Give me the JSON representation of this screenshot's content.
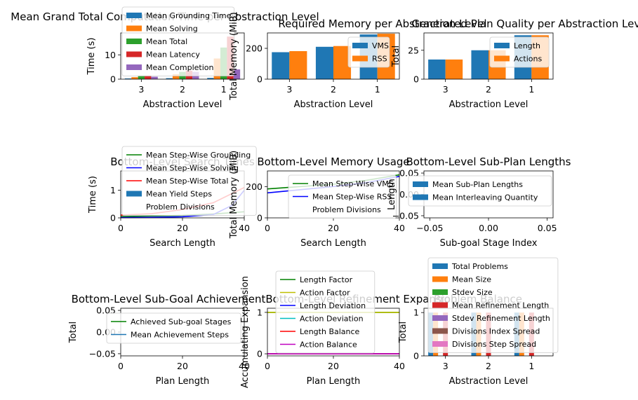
{
  "chart_data": [
    {
      "id": "p1",
      "type": "bar",
      "title": "Mean Grand Total Computation Time per Abstraction Level",
      "xlabel": "Abstraction Level",
      "ylabel": "Time (s)",
      "categories": [
        "3",
        "2",
        "1"
      ],
      "ylim": [
        0,
        19
      ],
      "yticks": [
        0,
        10
      ],
      "legend_placement": "upper-left",
      "series": [
        {
          "name": "Mean Grounding Time",
          "color": "#1f77b4",
          "values": [
            0.3,
            0.4,
            0.5
          ]
        },
        {
          "name": "Mean Solving",
          "color": "#ff7f0e",
          "values": [
            0.8,
            2.0,
            8.5
          ]
        },
        {
          "name": "Mean Total",
          "color": "#2ca02c",
          "values": [
            1.5,
            3.0,
            13.0
          ]
        },
        {
          "name": "Mean Latency",
          "color": "#d62728",
          "values": [
            1.5,
            3.5,
            17.5
          ]
        },
        {
          "name": "Mean Completion",
          "color": "#9467bd",
          "values": [
            1.0,
            3.0,
            4.0
          ]
        }
      ]
    },
    {
      "id": "p2",
      "type": "bar",
      "title": "Required Memory per Abstraction Level",
      "xlabel": "Abstraction Level",
      "ylabel": "Total Memory (MiB)",
      "categories": [
        "3",
        "2",
        "1"
      ],
      "ylim": [
        0,
        300
      ],
      "yticks": [
        0,
        200
      ],
      "legend_placement": "lower-right",
      "series": [
        {
          "name": "VMS",
          "color": "#1f77b4",
          "values": [
            175,
            210,
            290
          ]
        },
        {
          "name": "RSS",
          "color": "#ff7f0e",
          "values": [
            182,
            215,
            295
          ]
        }
      ]
    },
    {
      "id": "p3",
      "type": "bar",
      "title": "Generated Plan Quality per Abstraction Level",
      "xlabel": "Abstraction Level",
      "ylabel": "Total",
      "categories": [
        "3",
        "2",
        "1"
      ],
      "ylim": [
        0,
        40
      ],
      "yticks": [
        0,
        25
      ],
      "legend_placement": "upper-right",
      "series": [
        {
          "name": "Length",
          "color": "#1f77b4",
          "values": [
            17,
            25,
            38
          ]
        },
        {
          "name": "Actions",
          "color": "#ff7f0e",
          "values": [
            17,
            25,
            38
          ]
        }
      ]
    },
    {
      "id": "p4",
      "type": "line",
      "title": "Bottom-Level Search Times",
      "xlabel": "Search Length",
      "ylabel": "Time (s)",
      "xlim": [
        0,
        40
      ],
      "ylim": [
        0,
        1.7
      ],
      "xticks": [
        0,
        20,
        40
      ],
      "yticks": [
        0,
        1
      ],
      "legend_placement": "upper-left",
      "series": [
        {
          "name": "Mean Step-Wise Grounding",
          "color": "#008000",
          "x": [
            0,
            10,
            20,
            30,
            40
          ],
          "y": [
            0.05,
            0.07,
            0.09,
            0.14,
            0.22
          ]
        },
        {
          "name": "Mean Step-Wise Solving",
          "color": "#0000ff",
          "x": [
            0,
            10,
            20,
            30,
            36,
            40
          ],
          "y": [
            0.01,
            0.02,
            0.04,
            0.12,
            0.45,
            1.0
          ]
        },
        {
          "name": "Mean Step-Wise Total",
          "color": "#ff0000",
          "x": [
            0,
            10,
            20,
            30,
            40
          ],
          "y": [
            0.1,
            0.15,
            0.3,
            0.55,
            1.1
          ]
        },
        {
          "name": "Mean Yield Steps",
          "color": "#1f77b4",
          "x": [
            0,
            40
          ],
          "y": [
            0,
            0
          ]
        },
        {
          "name": "Problem Divisions",
          "color": "#1f77b4",
          "x": [
            0,
            40
          ],
          "y": [
            0,
            0
          ]
        }
      ]
    },
    {
      "id": "p5",
      "type": "line",
      "title": "Bottom-Level Memory Usage",
      "xlabel": "Search Length",
      "ylabel": "Total Memory (MiB)",
      "xlim": [
        0,
        40
      ],
      "ylim": [
        0,
        300
      ],
      "xticks": [
        0,
        20,
        40
      ],
      "yticks": [
        0,
        200
      ],
      "legend_placement": "upper-left",
      "series": [
        {
          "name": "Mean Step-Wise VMS",
          "color": "#008000",
          "x": [
            0,
            10,
            20,
            30,
            40
          ],
          "y": [
            185,
            200,
            215,
            240,
            275
          ]
        },
        {
          "name": "Mean Step-Wise RSS",
          "color": "#0000ff",
          "x": [
            0,
            10,
            20,
            30,
            40
          ],
          "y": [
            160,
            180,
            200,
            225,
            265
          ]
        },
        {
          "name": "Problem Divisions",
          "color": "#1f77b4",
          "x": [
            0,
            40
          ],
          "y": [
            0,
            0
          ]
        }
      ]
    },
    {
      "id": "p6",
      "type": "bar",
      "title": "Bottom-Level Sub-Plan Lengths",
      "xlabel": "Sub-goal Stage Index",
      "ylabel": "Length",
      "xlim": [
        -0.055,
        0.055
      ],
      "ylim": [
        -0.055,
        0.055
      ],
      "xticks": [
        -0.05,
        0.0,
        0.05
      ],
      "xticklabels": [
        "−0.05",
        "0.00",
        "0.05"
      ],
      "yticks": [
        -0.05,
        0.0,
        0.05
      ],
      "yticklabels": [
        "−0.05",
        "0.00",
        "0.05"
      ],
      "legend_placement": "upper-left",
      "series": [
        {
          "name": "Mean Sub-Plan Lengths",
          "color": "#1f77b4",
          "values": []
        },
        {
          "name": "Mean Interleaving Quantity",
          "color": "#1f77b4",
          "values": []
        }
      ]
    },
    {
      "id": "p7",
      "type": "line",
      "title": "Bottom-Level Sub-Goal Achievement",
      "xlabel": "Plan Length",
      "ylabel": "Total",
      "xlim": [
        0,
        40
      ],
      "ylim": [
        -0.055,
        0.055
      ],
      "xticks": [
        0,
        20,
        40
      ],
      "yticks": [
        -0.05,
        0.0,
        0.05
      ],
      "yticklabels": [
        "−0.05",
        "0.00",
        "0.05"
      ],
      "legend_placement": "upper-left",
      "series": [
        {
          "name": "Achieved Sub-goal Stages",
          "color": "#008000",
          "x": [],
          "y": []
        },
        {
          "name": "Mean Achievement Steps",
          "color": "#1f77b4",
          "x": [],
          "y": []
        }
      ]
    },
    {
      "id": "p8",
      "type": "line",
      "title": "Bottom-Level Refinement Expansion",
      "xlabel": "Plan Length",
      "ylabel": "Accumulating Expansion",
      "xlim": [
        0,
        40
      ],
      "ylim": [
        -0.05,
        1.1
      ],
      "xticks": [
        0,
        20,
        40
      ],
      "yticks": [
        0,
        1
      ],
      "legend_placement": "upper-left",
      "series": [
        {
          "name": "Length Factor",
          "color": "#008000",
          "x": [
            0,
            40
          ],
          "y": [
            1.0,
            1.0
          ]
        },
        {
          "name": "Action Factor",
          "color": "#bfbf00",
          "x": [
            0,
            40
          ],
          "y": [
            1.0,
            1.0
          ]
        },
        {
          "name": "Length Deviation",
          "color": "#0000ff",
          "x": [
            0,
            40
          ],
          "y": [
            0,
            0
          ]
        },
        {
          "name": "Action Deviation",
          "color": "#00bfbf",
          "x": [
            0,
            40
          ],
          "y": [
            0,
            0
          ]
        },
        {
          "name": "Length Balance",
          "color": "#ff0000",
          "x": [
            0,
            40
          ],
          "y": [
            0,
            0
          ]
        },
        {
          "name": "Action Balance",
          "color": "#bf00bf",
          "x": [
            0,
            40
          ],
          "y": [
            0,
            0
          ]
        }
      ]
    },
    {
      "id": "p9",
      "type": "bar",
      "title": "Problem Balance",
      "xlabel": "Abstraction Level",
      "ylabel": "Total",
      "categories": [
        "3",
        "2",
        "1"
      ],
      "ylim": [
        0,
        1.1
      ],
      "yticks": [
        0,
        1
      ],
      "legend_placement": "upper-left",
      "series": [
        {
          "name": "Total Problems",
          "color": "#1f77b4",
          "values": [
            1,
            1,
            1
          ]
        },
        {
          "name": "Mean Size",
          "color": "#ff7f0e",
          "values": [
            1,
            1,
            1
          ]
        },
        {
          "name": "Stdev Size",
          "color": "#2ca02c",
          "values": [
            0,
            0,
            0
          ]
        },
        {
          "name": "Mean Refinement Length",
          "color": "#d62728",
          "values": [
            1,
            1,
            1
          ]
        },
        {
          "name": "Stdev Refinement Length",
          "color": "#9467bd",
          "values": [
            0,
            0,
            0
          ]
        },
        {
          "name": "Divisions Index Spread",
          "color": "#8c564b",
          "values": [
            0,
            0,
            0
          ]
        },
        {
          "name": "Divisions Step Spread",
          "color": "#e377c2",
          "values": [
            0,
            0,
            0
          ]
        }
      ]
    }
  ]
}
